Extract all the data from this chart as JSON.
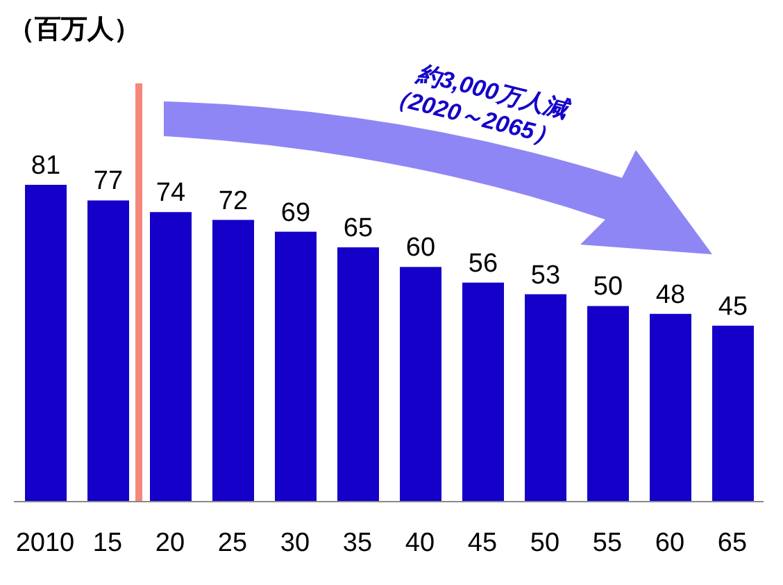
{
  "chart_data": {
    "type": "bar",
    "categories": [
      "2010",
      "15",
      "20",
      "25",
      "30",
      "35",
      "40",
      "45",
      "50",
      "55",
      "60",
      "65"
    ],
    "values": [
      81,
      77,
      74,
      72,
      69,
      65,
      60,
      56,
      53,
      50,
      48,
      45
    ],
    "color": "#1400c8",
    "data_labels": true,
    "ref_lines": [
      {
        "axis": "x",
        "value": "15",
        "color": "#f4877a"
      }
    ],
    "annotations": [
      "（百万人）",
      "約3,000万人減",
      "（2020～2065）"
    ],
    "grid": false,
    "legend": false
  }
}
